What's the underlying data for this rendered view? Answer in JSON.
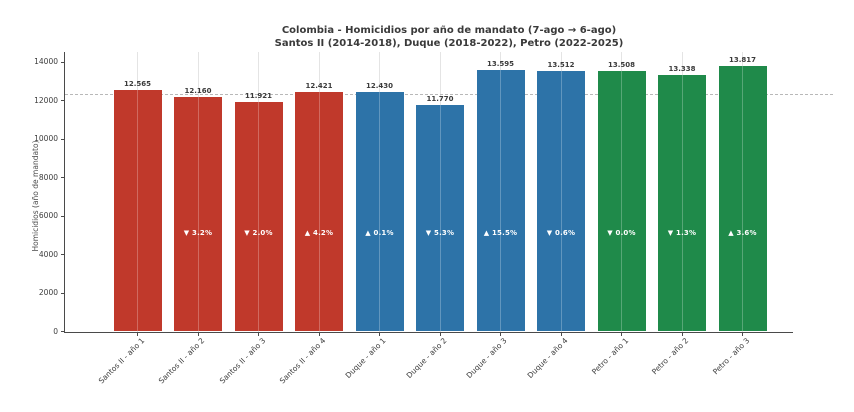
{
  "chart_data": {
    "type": "bar",
    "title": "Colombia - Homicidios por año de mandato (7-ago → 6-ago)",
    "subtitle": "Santos II (2014-2018), Duque (2018-2022), Petro (2022-2025)",
    "ylabel": "Homicidios (año de mandato)",
    "ylim": [
      0,
      14000
    ],
    "yticks": [
      0,
      2000,
      4000,
      6000,
      8000,
      10000,
      12000,
      14000
    ],
    "grid": {
      "vertical_category_lines": true,
      "horizontal_lines": false
    },
    "legend": false,
    "reference_line": {
      "value": 12300,
      "style": "dashed",
      "estimated": true
    },
    "categories": [
      "Santos II - año 1",
      "Santos II - año 2",
      "Santos II - año 3",
      "Santos II - año 4",
      "Duque - año 1",
      "Duque - año 2",
      "Duque - año 3",
      "Duque - año 4",
      "Petro - año 1",
      "Petro - año 2",
      "Petro - año 3"
    ],
    "values": [
      12565,
      12160,
      11921,
      12421,
      12430,
      11770,
      13595,
      13512,
      13508,
      13338,
      13817
    ],
    "bar_value_labels": [
      "12.565",
      "12.160",
      "11.921",
      "12.421",
      "12.430",
      "11.770",
      "13.595",
      "13.512",
      "13.508",
      "13.338",
      "13.817"
    ],
    "pct_change_labels": [
      "",
      "▼ 3.2%",
      "▼ 2.0%",
      "▲ 4.2%",
      "▲ 0.1%",
      "▼ 5.3%",
      "▲ 15.5%",
      "▼ 0.6%",
      "▼ 0.0%",
      "▼ 1.3%",
      "▲ 3.6%"
    ],
    "groups": [
      {
        "name": "Santos II",
        "color": "#c0392b"
      },
      {
        "name": "Duque",
        "color": "#2d73a8"
      },
      {
        "name": "Petro",
        "color": "#1f8a4a"
      }
    ],
    "bar_group_index": [
      0,
      0,
      0,
      0,
      1,
      1,
      1,
      1,
      2,
      2,
      2
    ]
  },
  "colors": {
    "background": "#ffffff",
    "spine": "#4a4a4a",
    "grid": "#e4e4e4",
    "title_text": "#3a3a3a",
    "tick_text": "#3c3c3c",
    "value_label_text": "#3a3a3a",
    "pct_label_text": "#ffffff",
    "reference_line": "#b8b8b8"
  }
}
